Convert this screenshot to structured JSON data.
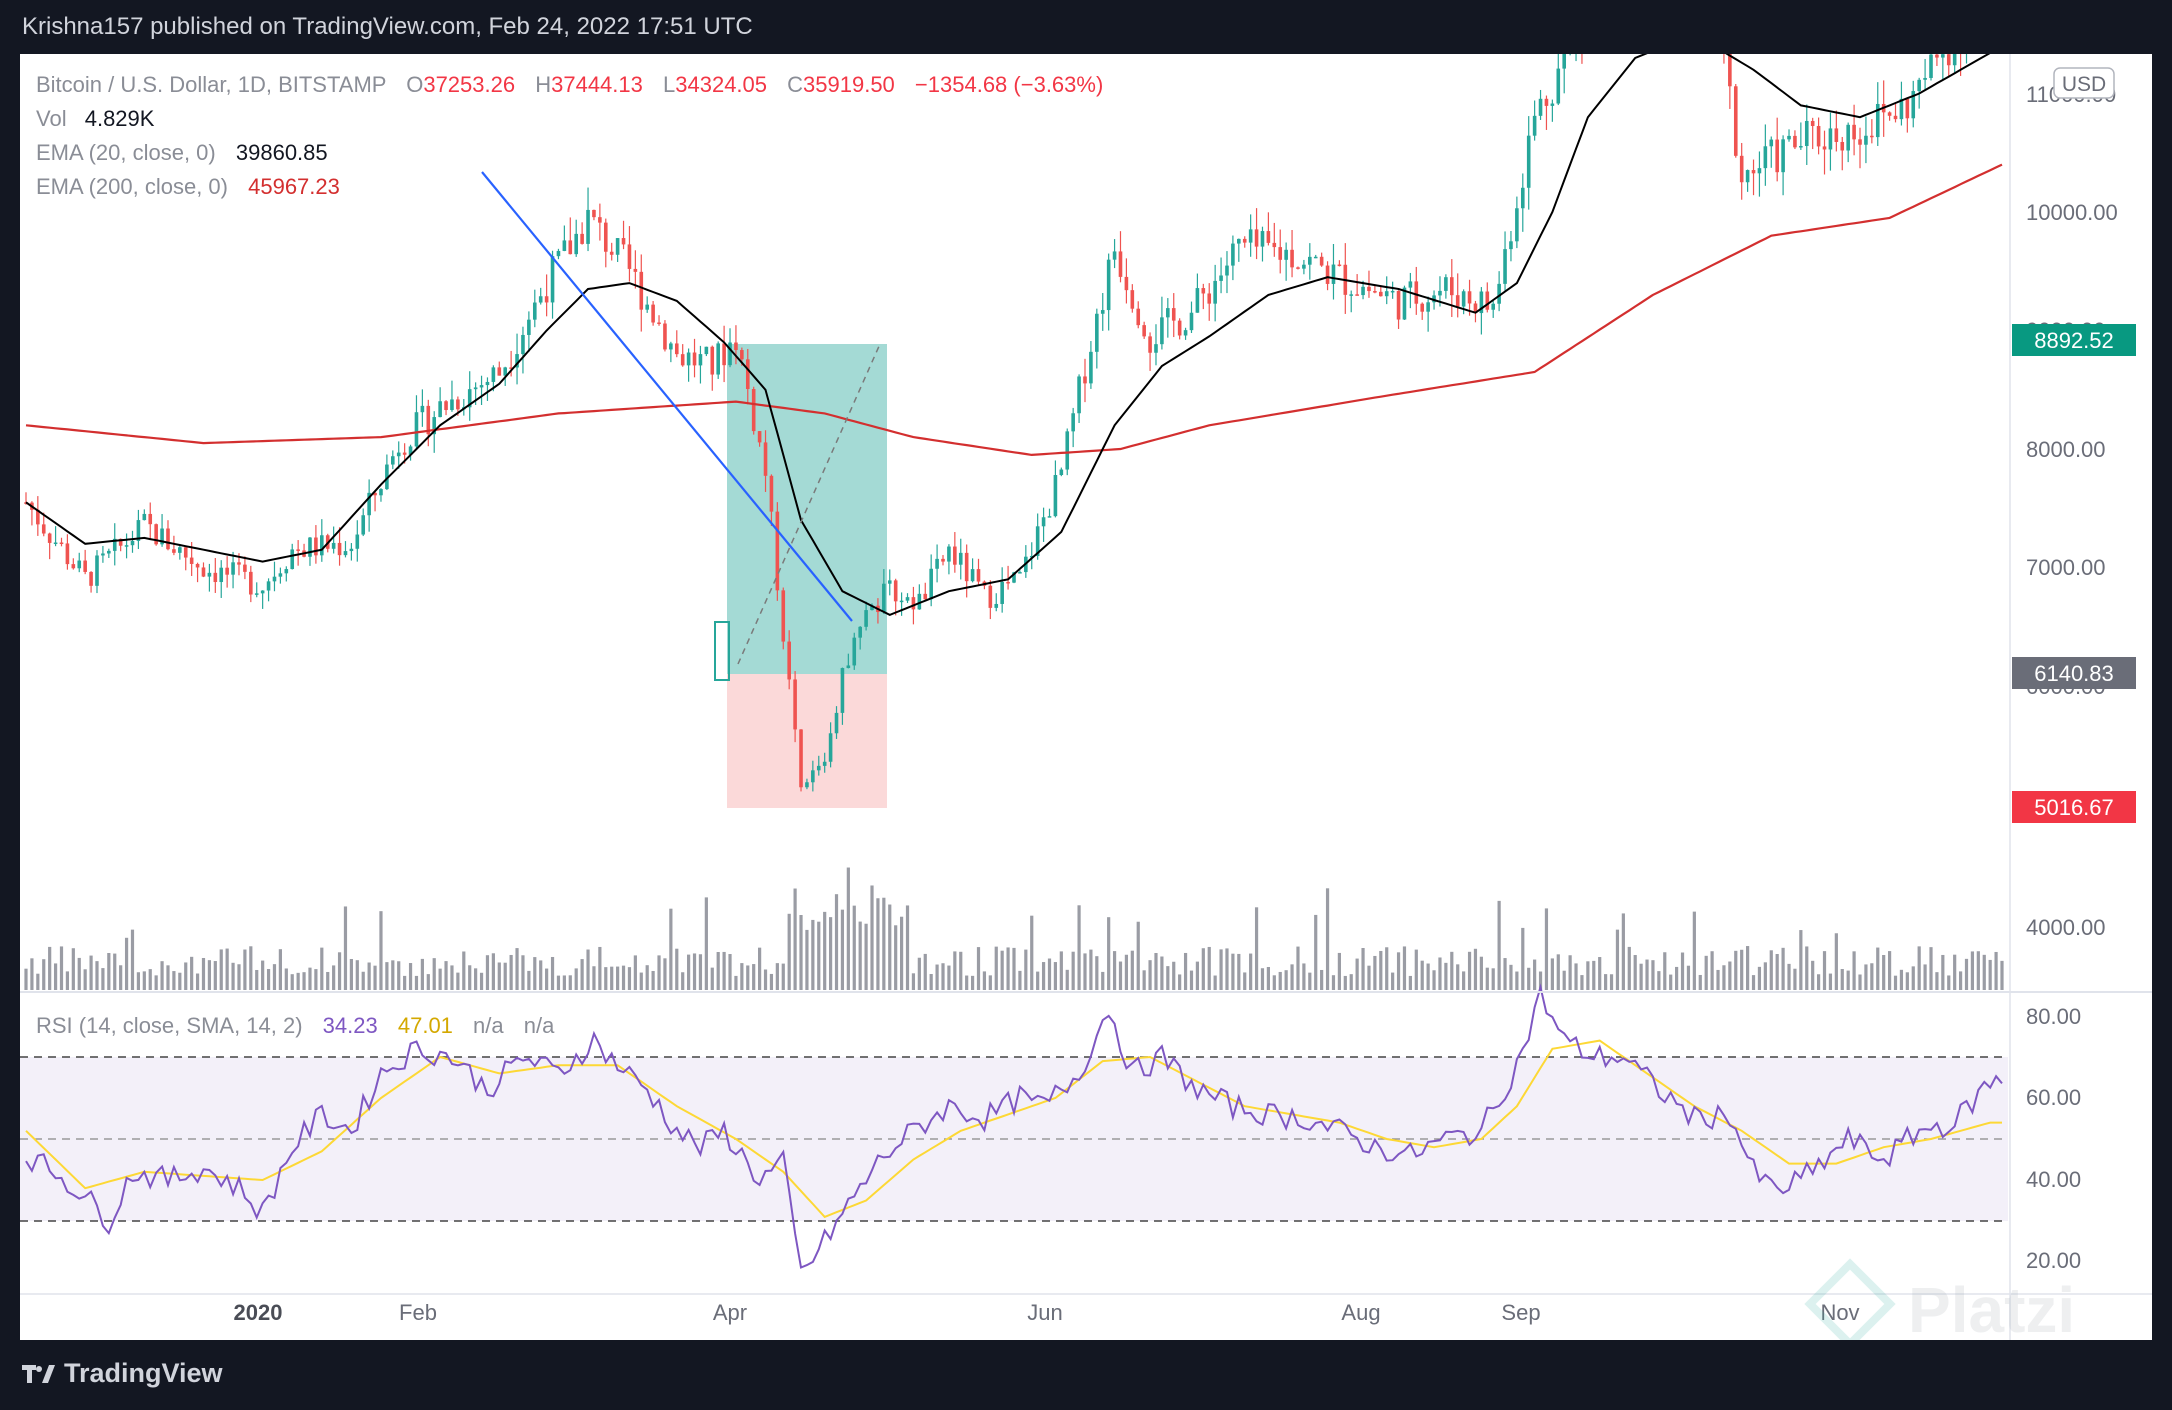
{
  "header": {
    "publish_text": "Krishna157 published on TradingView.com, Feb 24, 2022 17:51 UTC"
  },
  "legend": {
    "symbol": "Bitcoin / U.S. Dollar, 1D, BITSTAMP",
    "o_label": "O",
    "o_value": "37253.26",
    "h_label": "H",
    "h_value": "37444.13",
    "l_label": "L",
    "l_value": "34324.05",
    "c_label": "C",
    "c_value": "35919.50",
    "change": "−1354.68 (−3.63%)",
    "vol_label": "Vol",
    "vol_value": "4.829K",
    "ema20_label": "EMA (20, close, 0)",
    "ema20_value": "39860.85",
    "ema200_label": "EMA (200, close, 0)",
    "ema200_value": "45967.23",
    "currency": "USD"
  },
  "rsi_legend": {
    "label": "RSI (14, close, SMA, 14, 2)",
    "rsi": "34.23",
    "sma": "47.01",
    "na1": "n/a",
    "na2": "n/a"
  },
  "price_badges": {
    "target": "8892.52",
    "entry": "6140.83",
    "stop": "5016.67"
  },
  "brand": {
    "name": "TradingView",
    "watermark": "Platzi"
  },
  "colors": {
    "up": "#26a69a",
    "down": "#ef5350",
    "ema20": "#000000",
    "ema200": "#d32f2f",
    "rsi": "#7e57c2",
    "rsi_sma": "#fdd835",
    "trendline": "#2962ff"
  },
  "chart_data": {
    "type": "candlestick",
    "symbol": "BTC/USD",
    "timeframe": "1D",
    "x_ticks": [
      "2020",
      "Feb",
      "Apr",
      "Jun",
      "Aug",
      "Sep",
      "Nov"
    ],
    "price_ticks": [
      "11000.00",
      "10000.00",
      "9000.00",
      "8000.00",
      "7000.00",
      "6000.00",
      "4000.00"
    ],
    "rsi_ticks": [
      "80.00",
      "60.00",
      "40.00",
      "20.00"
    ],
    "rsi_bands": {
      "upper": 70,
      "middle": 50,
      "lower": 30
    },
    "position": {
      "type": "long",
      "entry": 6140.83,
      "target": 8892.52,
      "stop": 5016.67
    },
    "price_path": [
      [
        0,
        7550
      ],
      [
        10,
        6900
      ],
      [
        20,
        7350
      ],
      [
        30,
        7000
      ],
      [
        40,
        6850
      ],
      [
        45,
        7150
      ],
      [
        55,
        7200
      ],
      [
        63,
        8050
      ],
      [
        70,
        8350
      ],
      [
        80,
        8650
      ],
      [
        88,
        9400
      ],
      [
        95,
        9950
      ],
      [
        102,
        9500
      ],
      [
        110,
        8800
      ],
      [
        116,
        8700
      ],
      [
        120,
        8950
      ],
      [
        125,
        7800
      ],
      [
        131,
        5100
      ],
      [
        135,
        5400
      ],
      [
        140,
        6500
      ],
      [
        146,
        6800
      ],
      [
        151,
        6700
      ],
      [
        156,
        7150
      ],
      [
        162,
        6750
      ],
      [
        168,
        6900
      ],
      [
        175,
        7800
      ],
      [
        179,
        8700
      ],
      [
        184,
        9700
      ],
      [
        190,
        8950
      ],
      [
        197,
        9150
      ],
      [
        205,
        9700
      ],
      [
        214,
        9650
      ],
      [
        222,
        9450
      ],
      [
        232,
        9250
      ],
      [
        240,
        9350
      ],
      [
        248,
        9200
      ],
      [
        255,
        10800
      ],
      [
        262,
        11500
      ],
      [
        270,
        11700
      ],
      [
        278,
        11900
      ],
      [
        286,
        11600
      ],
      [
        290,
        10300
      ],
      [
        300,
        10600
      ],
      [
        310,
        10700
      ],
      [
        318,
        10900
      ],
      [
        326,
        11500
      ],
      [
        334,
        11700
      ]
    ],
    "ema20_path": [
      [
        0,
        7550
      ],
      [
        10,
        7200
      ],
      [
        20,
        7250
      ],
      [
        30,
        7150
      ],
      [
        40,
        7050
      ],
      [
        50,
        7150
      ],
      [
        60,
        7700
      ],
      [
        70,
        8200
      ],
      [
        80,
        8550
      ],
      [
        88,
        9000
      ],
      [
        95,
        9350
      ],
      [
        102,
        9400
      ],
      [
        110,
        9250
      ],
      [
        118,
        8900
      ],
      [
        125,
        8500
      ],
      [
        131,
        7400
      ],
      [
        138,
        6800
      ],
      [
        146,
        6600
      ],
      [
        156,
        6800
      ],
      [
        166,
        6900
      ],
      [
        175,
        7300
      ],
      [
        184,
        8200
      ],
      [
        192,
        8700
      ],
      [
        200,
        8950
      ],
      [
        210,
        9300
      ],
      [
        220,
        9450
      ],
      [
        232,
        9350
      ],
      [
        245,
        9150
      ],
      [
        252,
        9400
      ],
      [
        258,
        10000
      ],
      [
        264,
        10800
      ],
      [
        272,
        11300
      ],
      [
        282,
        11500
      ],
      [
        292,
        11200
      ],
      [
        300,
        10900
      ],
      [
        310,
        10800
      ],
      [
        320,
        11000
      ],
      [
        334,
        11400
      ]
    ],
    "ema200_path": [
      [
        0,
        8200
      ],
      [
        30,
        8050
      ],
      [
        60,
        8100
      ],
      [
        90,
        8300
      ],
      [
        120,
        8400
      ],
      [
        135,
        8300
      ],
      [
        150,
        8100
      ],
      [
        170,
        7950
      ],
      [
        185,
        8000
      ],
      [
        200,
        8200
      ],
      [
        230,
        8450
      ],
      [
        255,
        8650
      ],
      [
        275,
        9300
      ],
      [
        295,
        9800
      ],
      [
        315,
        9950
      ],
      [
        334,
        10400
      ]
    ],
    "rsi_path": [
      [
        0,
        46
      ],
      [
        5,
        42
      ],
      [
        10,
        36
      ],
      [
        14,
        30
      ],
      [
        18,
        42
      ],
      [
        24,
        40
      ],
      [
        30,
        43
      ],
      [
        36,
        38
      ],
      [
        40,
        32
      ],
      [
        45,
        48
      ],
      [
        50,
        56
      ],
      [
        55,
        52
      ],
      [
        60,
        66
      ],
      [
        66,
        72
      ],
      [
        72,
        70
      ],
      [
        78,
        62
      ],
      [
        84,
        70
      ],
      [
        90,
        66
      ],
      [
        96,
        74
      ],
      [
        100,
        68
      ],
      [
        105,
        62
      ],
      [
        110,
        52
      ],
      [
        114,
        48
      ],
      [
        118,
        52
      ],
      [
        124,
        40
      ],
      [
        128,
        44
      ],
      [
        131,
        17
      ],
      [
        135,
        25
      ],
      [
        140,
        36
      ],
      [
        145,
        46
      ],
      [
        150,
        52
      ],
      [
        156,
        58
      ],
      [
        162,
        55
      ],
      [
        168,
        60
      ],
      [
        172,
        58
      ],
      [
        178,
        66
      ],
      [
        183,
        82
      ],
      [
        187,
        66
      ],
      [
        192,
        70
      ],
      [
        198,
        62
      ],
      [
        204,
        58
      ],
      [
        210,
        56
      ],
      [
        216,
        55
      ],
      [
        222,
        52
      ],
      [
        228,
        48
      ],
      [
        234,
        46
      ],
      [
        240,
        50
      ],
      [
        246,
        52
      ],
      [
        252,
        68
      ],
      [
        256,
        85
      ],
      [
        260,
        74
      ],
      [
        265,
        70
      ],
      [
        270,
        70
      ],
      [
        276,
        62
      ],
      [
        282,
        55
      ],
      [
        288,
        56
      ],
      [
        292,
        42
      ],
      [
        296,
        37
      ],
      [
        302,
        42
      ],
      [
        308,
        50
      ],
      [
        314,
        45
      ],
      [
        320,
        52
      ],
      [
        326,
        54
      ],
      [
        332,
        64
      ]
    ],
    "rsi_sma_path": [
      [
        0,
        52
      ],
      [
        10,
        38
      ],
      [
        20,
        42
      ],
      [
        30,
        41
      ],
      [
        40,
        40
      ],
      [
        50,
        47
      ],
      [
        60,
        60
      ],
      [
        70,
        70
      ],
      [
        80,
        66
      ],
      [
        90,
        68
      ],
      [
        100,
        68
      ],
      [
        110,
        58
      ],
      [
        120,
        50
      ],
      [
        128,
        42
      ],
      [
        135,
        31
      ],
      [
        142,
        35
      ],
      [
        150,
        45
      ],
      [
        158,
        52
      ],
      [
        166,
        56
      ],
      [
        174,
        60
      ],
      [
        182,
        69
      ],
      [
        190,
        70
      ],
      [
        198,
        64
      ],
      [
        206,
        58
      ],
      [
        214,
        56
      ],
      [
        222,
        54
      ],
      [
        230,
        50
      ],
      [
        238,
        48
      ],
      [
        246,
        50
      ],
      [
        252,
        58
      ],
      [
        258,
        72
      ],
      [
        266,
        74
      ],
      [
        274,
        66
      ],
      [
        282,
        58
      ],
      [
        290,
        52
      ],
      [
        298,
        44
      ],
      [
        306,
        44
      ],
      [
        314,
        48
      ],
      [
        322,
        50
      ],
      [
        332,
        54
      ]
    ]
  }
}
